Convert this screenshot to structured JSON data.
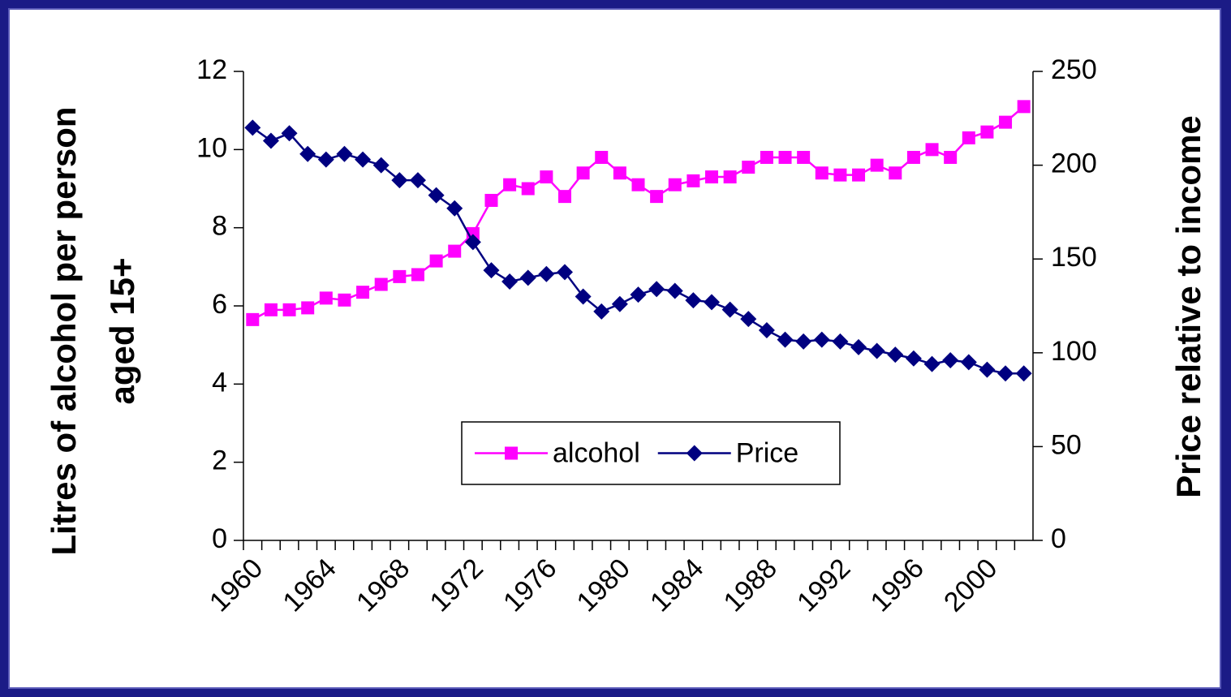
{
  "chart_data": {
    "type": "line",
    "y_label": [
      "Litres of alcohol per person",
      "aged 15+"
    ],
    "y2_label": "Price relative to income",
    "categories": [
      "1960",
      null,
      null,
      null,
      "1964",
      null,
      null,
      null,
      "1968",
      null,
      null,
      null,
      "1972",
      null,
      null,
      null,
      "1976",
      null,
      null,
      null,
      "1980",
      null,
      null,
      null,
      "1984",
      null,
      null,
      null,
      "1988",
      null,
      null,
      null,
      "1992",
      null,
      null,
      null,
      "1996",
      null,
      null,
      null,
      "2000",
      null,
      null
    ],
    "series": [
      {
        "name": "alcohol",
        "color": "#ff00ff",
        "marker": "square",
        "values": [
          5.65,
          5.9,
          5.9,
          5.95,
          6.2,
          6.15,
          6.35,
          6.55,
          6.75,
          6.8,
          7.15,
          7.4,
          7.85,
          8.7,
          9.1,
          9.0,
          9.3,
          8.8,
          9.4,
          9.8,
          9.4,
          9.1,
          8.8,
          9.1,
          9.2,
          9.3,
          9.3,
          9.55,
          9.8,
          9.8,
          9.8,
          9.4,
          9.35,
          9.35,
          9.6,
          9.4,
          9.8,
          10.0,
          9.8,
          10.3,
          10.45,
          10.7,
          11.1
        ]
      },
      {
        "name": "Price",
        "color": "#000080",
        "marker": "diamond",
        "axis": "y2",
        "values": [
          220,
          213,
          217,
          206,
          203,
          206,
          203,
          200,
          192,
          192,
          184,
          177,
          159,
          144,
          138,
          140,
          142,
          143,
          130,
          122,
          126,
          131,
          134,
          133,
          128,
          127,
          123,
          118,
          112,
          107,
          106,
          107,
          106,
          103,
          101,
          99,
          97,
          94,
          96,
          95,
          91,
          89,
          89
        ]
      }
    ],
    "ylim": [
      0,
      12
    ],
    "yticks": [
      0,
      2,
      4,
      6,
      8,
      10,
      12
    ],
    "y2lim": [
      0,
      250
    ],
    "y2ticks": [
      0,
      50,
      100,
      150,
      200,
      250
    ],
    "legend": "center"
  }
}
